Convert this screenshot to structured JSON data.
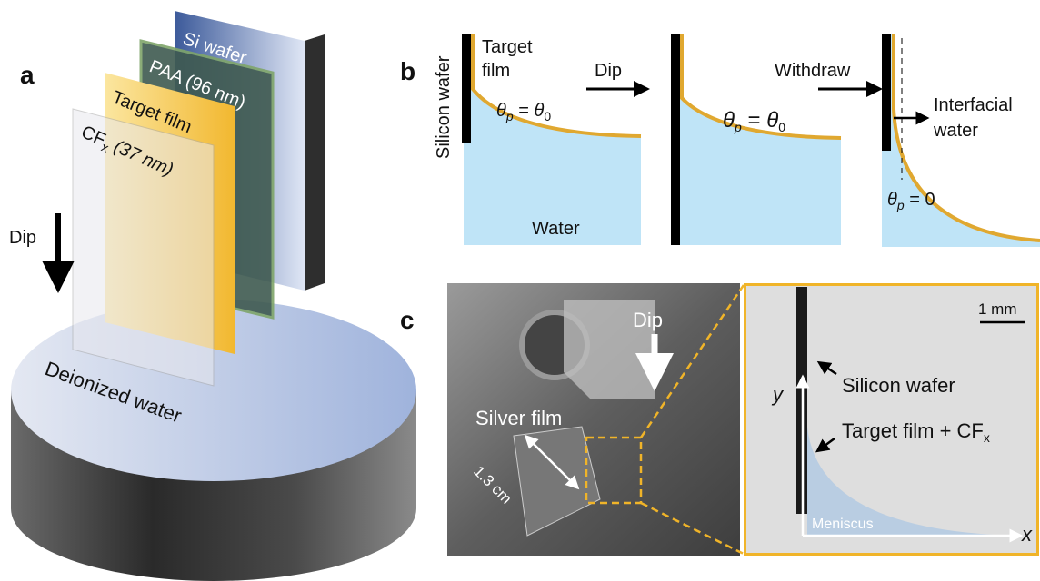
{
  "panel_a": {
    "label": "a",
    "layers": {
      "si_wafer": "Si wafer",
      "paa": "PAA (96 nm)",
      "target_film": "Target film",
      "cf": [
        "CF",
        "x",
        " (37 nm)"
      ]
    },
    "dip": "Dip",
    "water": "Deionized water"
  },
  "panel_b": {
    "label": "b",
    "silicon_wafer": "Silicon wafer",
    "target_film": [
      "Target",
      "film"
    ],
    "water": "Water",
    "angle_1": [
      "θ",
      "p",
      " = ",
      "θ",
      "0"
    ],
    "dip": "Dip",
    "angle_2": [
      "θ",
      "p",
      " = ",
      "θ",
      "0"
    ],
    "withdraw": "Withdraw",
    "interfacial_water": [
      "Interfacial",
      "water"
    ],
    "angle_3": [
      "θ",
      "p",
      " = 0"
    ]
  },
  "panel_c": {
    "label": "c",
    "dip": "Dip",
    "silver_film": "Silver film",
    "size": "1.3 cm",
    "scale": "1 mm",
    "silicon_wafer": "Silicon wafer",
    "target_cf": [
      "Target film + CF",
      "x"
    ],
    "axis_y": "y",
    "axis_x": "x",
    "meniscus": "Meniscus"
  }
}
